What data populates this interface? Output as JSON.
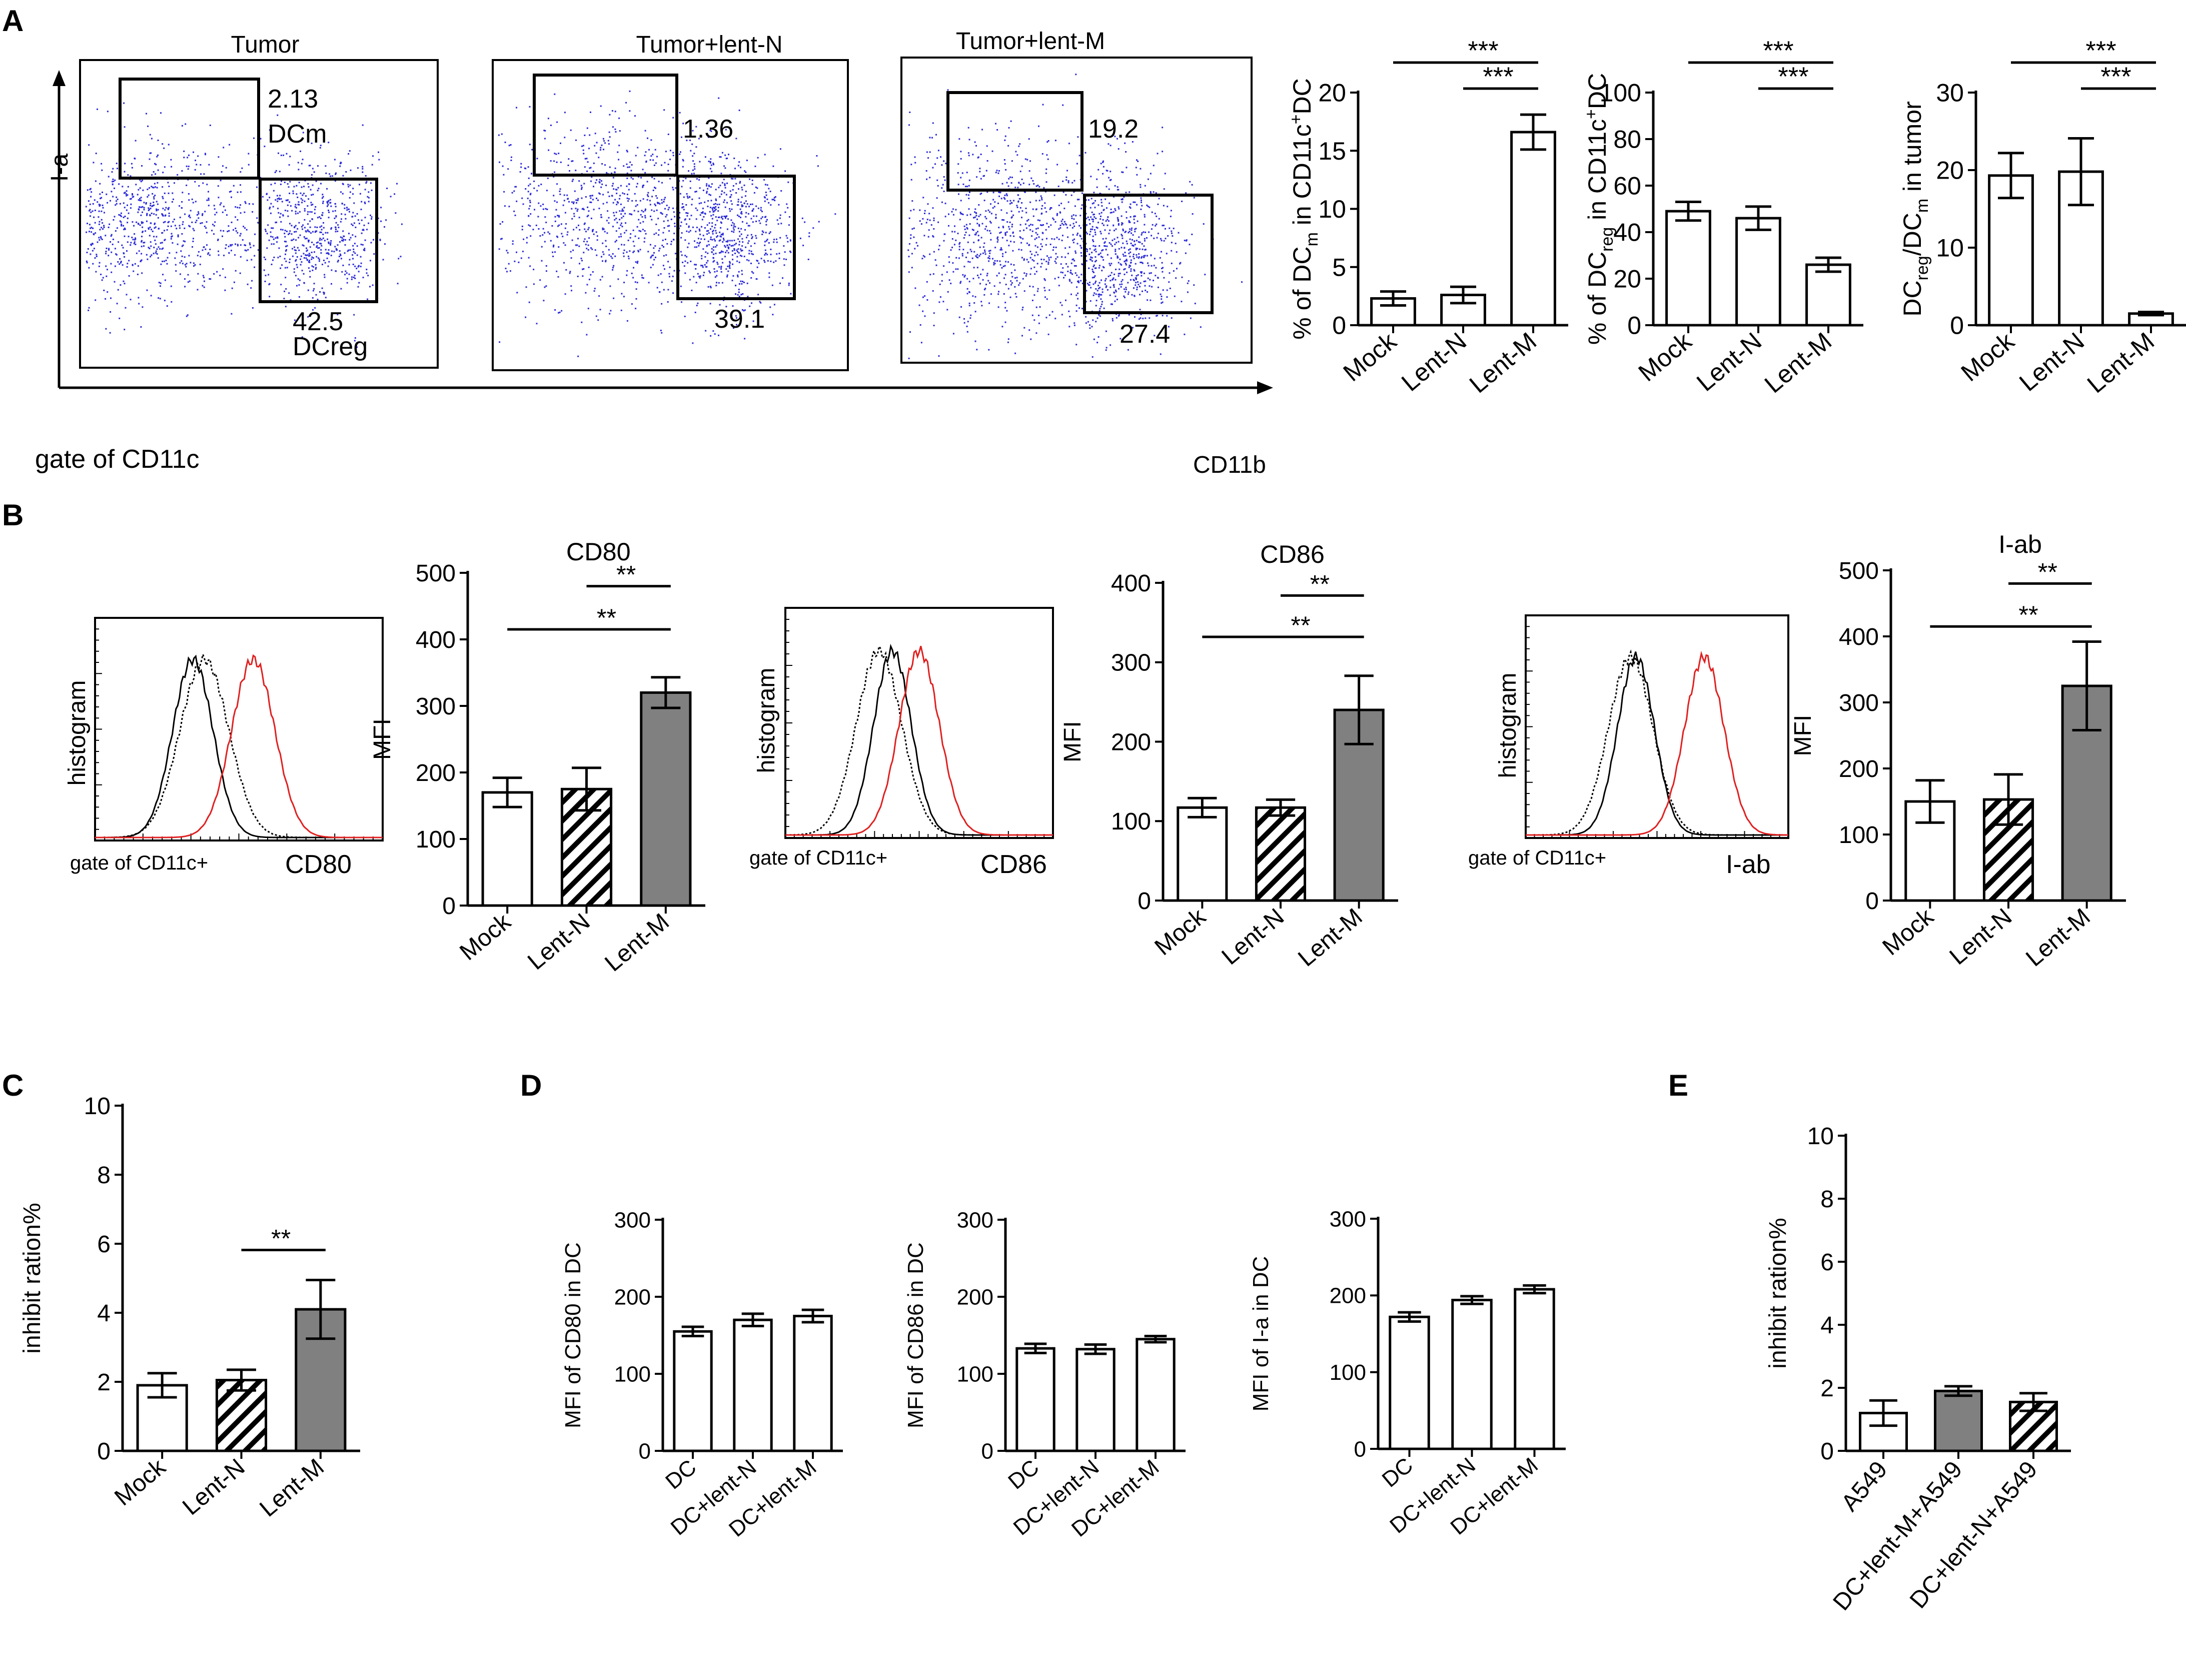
{
  "panel_labels": {
    "A": "A",
    "B": "B",
    "C": "C",
    "D": "D",
    "E": "E"
  },
  "chart_data": [
    {
      "id": "A-flow",
      "type": "scatter",
      "description_of_axes": "Flow cytometry dot plots",
      "y_axis_label": "I-a",
      "x_axis_label": "CD11b",
      "gate_label": "gate of CD11c",
      "plots": [
        {
          "title": "Tumor",
          "upper_gate_value": "2.13",
          "upper_gate_name": "DCm",
          "lower_gate_value": "42.5",
          "lower_gate_name": "DCreg"
        },
        {
          "title": "Tumor+lent-N",
          "upper_gate_value": "1.36",
          "lower_gate_value": "39.1"
        },
        {
          "title": "Tumor+lent-M",
          "upper_gate_value": "19.2",
          "lower_gate_value": "27.4"
        }
      ]
    },
    {
      "id": "A-bar1",
      "type": "bar",
      "categories": [
        "Mock",
        "Lent-N",
        "Lent-M"
      ],
      "values": [
        2.3,
        2.6,
        16.6
      ],
      "errors": [
        0.6,
        0.7,
        1.5
      ],
      "ylabel_parts": [
        "% of DC",
        "m",
        " in CD11c",
        "+",
        "DC"
      ],
      "ylim": [
        0,
        20
      ],
      "yticks": [
        "0",
        "5",
        "10",
        "15",
        "20"
      ],
      "fills": [
        "white",
        "white",
        "white"
      ],
      "significance": [
        {
          "from": 0,
          "to": 2,
          "label": "***"
        },
        {
          "from": 1,
          "to": 2,
          "label": "***"
        }
      ]
    },
    {
      "id": "A-bar2",
      "type": "bar",
      "categories": [
        "Mock",
        "Lent-N",
        "Lent-M"
      ],
      "values": [
        49,
        46,
        26
      ],
      "errors": [
        4,
        5,
        3
      ],
      "ylabel_parts": [
        "% of DC",
        "reg",
        " in CD11c",
        "+",
        "DC"
      ],
      "ylim": [
        0,
        100
      ],
      "yticks": [
        "0",
        "20",
        "40",
        "60",
        "80",
        "100"
      ],
      "fills": [
        "white",
        "white",
        "white"
      ],
      "significance": [
        {
          "from": 0,
          "to": 2,
          "label": "***"
        },
        {
          "from": 1,
          "to": 2,
          "label": "***"
        }
      ]
    },
    {
      "id": "A-bar3",
      "type": "bar",
      "categories": [
        "Mock",
        "Lent-N",
        "Lent-M"
      ],
      "values": [
        19.3,
        19.8,
        1.5
      ],
      "errors": [
        2.9,
        4.3,
        0.2
      ],
      "ylabel_parts": [
        "DC",
        "reg",
        "/DC",
        "m",
        " in tumor"
      ],
      "ylim": [
        0,
        30
      ],
      "yticks": [
        "0",
        "10",
        "20",
        "30"
      ],
      "fills": [
        "white",
        "white",
        "white"
      ],
      "significance": [
        {
          "from": 0,
          "to": 2,
          "label": "***"
        },
        {
          "from": 1,
          "to": 2,
          "label": "***"
        }
      ]
    },
    {
      "id": "B-hist",
      "type": "line",
      "ylabel": "histogram",
      "gate_label": "gate of CD11c+",
      "markers": [
        "CD80",
        "CD86",
        "I-ab"
      ]
    },
    {
      "id": "B-bar1",
      "type": "bar",
      "title": "CD80",
      "categories": [
        "Mock",
        "Lent-N",
        "Lent-M"
      ],
      "values": [
        170,
        175,
        320
      ],
      "errors": [
        22,
        32,
        23
      ],
      "ylabel": "MFI",
      "ylim": [
        0,
        500
      ],
      "yticks": [
        "0",
        "100",
        "200",
        "300",
        "400",
        "500"
      ],
      "fills": [
        "white",
        "hatch",
        "gray"
      ],
      "significance": [
        {
          "from": 0,
          "to": 2,
          "label": "**"
        },
        {
          "from": 1,
          "to": 2,
          "label": "**"
        }
      ]
    },
    {
      "id": "B-bar2",
      "type": "bar",
      "title": "CD86",
      "categories": [
        "Mock",
        "Lent-N",
        "Lent-M"
      ],
      "values": [
        117,
        117,
        240
      ],
      "errors": [
        12,
        10,
        43
      ],
      "ylabel": "MFI",
      "ylim": [
        0,
        400
      ],
      "yticks": [
        "0",
        "100",
        "200",
        "300",
        "400"
      ],
      "fills": [
        "white",
        "hatch",
        "gray"
      ],
      "significance": [
        {
          "from": 0,
          "to": 2,
          "label": "**"
        },
        {
          "from": 1,
          "to": 2,
          "label": "**"
        }
      ]
    },
    {
      "id": "B-bar3",
      "type": "bar",
      "title": "I-ab",
      "categories": [
        "Mock",
        "Lent-N",
        "Lent-M"
      ],
      "values": [
        150,
        153,
        325
      ],
      "errors": [
        32,
        38,
        67
      ],
      "ylabel": "MFI",
      "ylim": [
        0,
        500
      ],
      "yticks": [
        "0",
        "100",
        "200",
        "300",
        "400",
        "500"
      ],
      "fills": [
        "white",
        "hatch",
        "gray"
      ],
      "significance": [
        {
          "from": 0,
          "to": 2,
          "label": "**"
        },
        {
          "from": 1,
          "to": 2,
          "label": "**"
        }
      ]
    },
    {
      "id": "C-bar",
      "type": "bar",
      "categories": [
        "Mock",
        "Lent-N",
        "Lent-M"
      ],
      "values": [
        1.9,
        2.05,
        4.1
      ],
      "errors": [
        0.35,
        0.3,
        0.85
      ],
      "ylabel": "inhibit ration%",
      "ylim": [
        0,
        10
      ],
      "yticks": [
        "0",
        "2",
        "4",
        "6",
        "8",
        "10"
      ],
      "fills": [
        "white",
        "hatch",
        "gray"
      ],
      "significance": [
        {
          "from": 1,
          "to": 2,
          "label": "**"
        }
      ]
    },
    {
      "id": "D-bar1",
      "type": "bar",
      "categories": [
        "DC",
        "DC+lent-N",
        "DC+lent-M"
      ],
      "values": [
        155,
        170,
        175
      ],
      "errors": [
        6,
        8,
        8
      ],
      "ylabel": "MFI of CD80 in DC",
      "ylim": [
        0,
        300
      ],
      "yticks": [
        "0",
        "100",
        "200",
        "300"
      ],
      "fills": [
        "white",
        "white",
        "white"
      ],
      "significance": []
    },
    {
      "id": "D-bar2",
      "type": "bar",
      "categories": [
        "DC",
        "DC+lent-N",
        "DC+lent-M"
      ],
      "values": [
        133,
        132,
        145
      ],
      "errors": [
        6,
        6,
        4
      ],
      "ylabel": "MFI of CD86 in DC",
      "ylim": [
        0,
        300
      ],
      "yticks": [
        "0",
        "100",
        "200",
        "300"
      ],
      "fills": [
        "white",
        "white",
        "white"
      ],
      "significance": []
    },
    {
      "id": "D-bar3",
      "type": "bar",
      "categories": [
        "DC",
        "DC+lent-N",
        "DC+lent-M"
      ],
      "values": [
        172,
        194,
        208
      ],
      "errors": [
        6,
        5,
        5
      ],
      "ylabel": "MFI of I-a in DC",
      "ylim": [
        0,
        300
      ],
      "yticks": [
        "0",
        "100",
        "200",
        "300"
      ],
      "fills": [
        "white",
        "white",
        "white"
      ],
      "significance": []
    },
    {
      "id": "E-bar",
      "type": "bar",
      "categories": [
        "A549",
        "DC+lent-M+A549",
        "DC+lent-N+A549"
      ],
      "values": [
        1.2,
        1.9,
        1.55
      ],
      "errors": [
        0.4,
        0.15,
        0.28
      ],
      "ylabel": "inhibit ration%",
      "ylim": [
        0,
        10
      ],
      "yticks": [
        "0",
        "2",
        "4",
        "6",
        "8",
        "10"
      ],
      "fills": [
        "white",
        "gray",
        "hatch"
      ],
      "significance": []
    }
  ]
}
